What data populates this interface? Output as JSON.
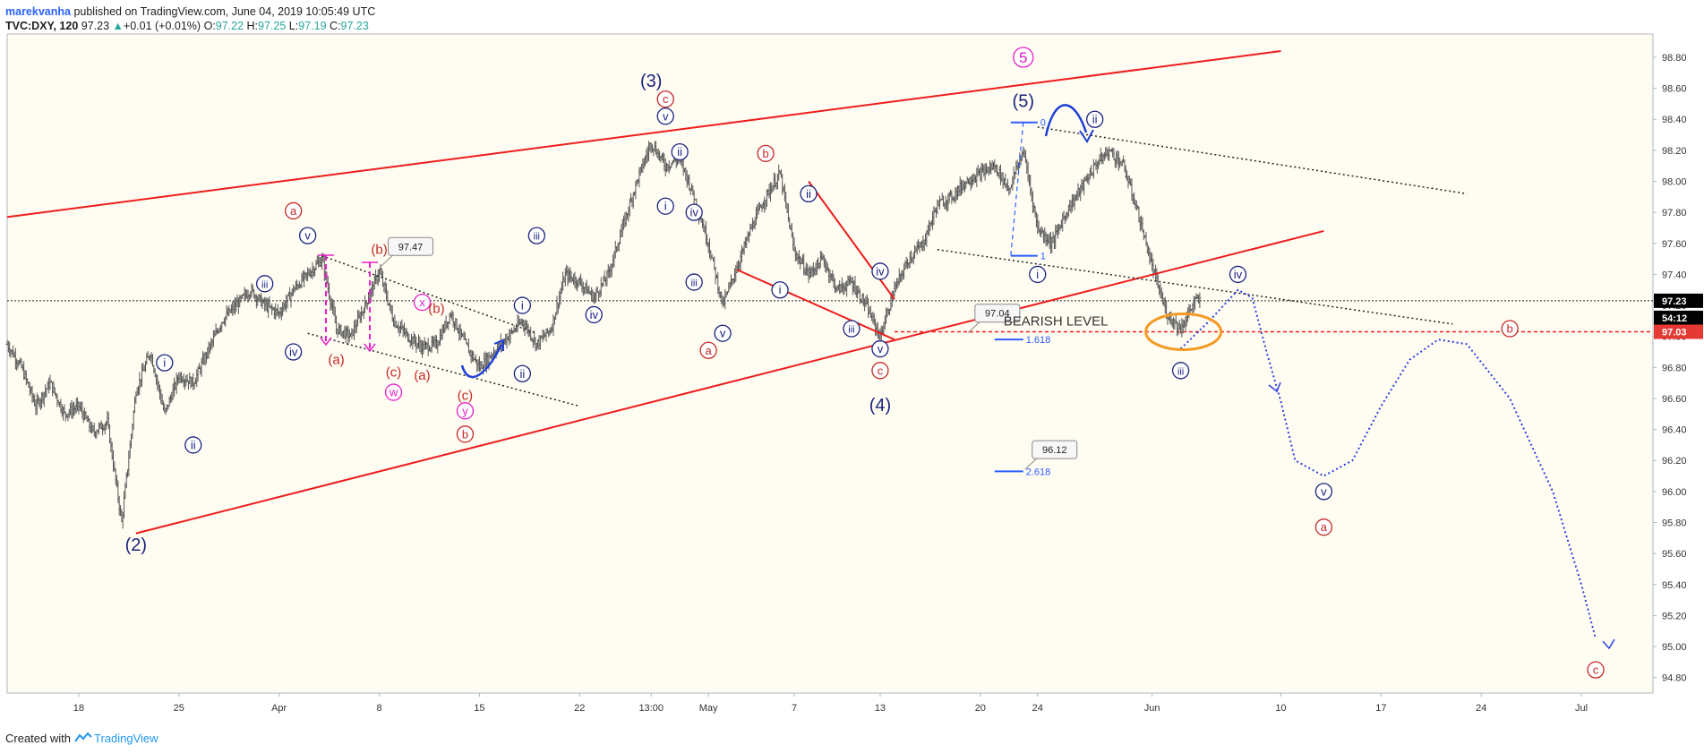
{
  "header": {
    "author": "marekvanha",
    "published_text": "published on TradingView.com, June 04, 2019 10:05:49 UTC",
    "symbol": "TVC:DXY, 120",
    "last": "97.23",
    "change": "+0.01 (+0.01%)",
    "open_label": "O:",
    "open": "97.22",
    "high_label": "H:",
    "high": "97.25",
    "low_label": "L:",
    "low": "97.19",
    "close_label": "C:",
    "close": "97.23"
  },
  "footer": {
    "created_with": "Created with",
    "brand": "TradingView"
  },
  "colors": {
    "red": "#ee1c1c",
    "navy": "#1a237e",
    "blue": "#1e3fd6",
    "magenta": "#e91ec8",
    "darkred": "#c62828",
    "orange": "#f59a23",
    "candle": "#555555"
  },
  "chart_data": {
    "type": "bar",
    "title": "",
    "xlabel": "",
    "ylabel": "",
    "ylim": [
      94.7,
      98.95
    ],
    "xlim": [
      "2019-03-13",
      "2019-07-06"
    ],
    "grid": false,
    "y_ticks": [
      "98.80",
      "98.60",
      "98.40",
      "98.20",
      "98.00",
      "97.80",
      "97.60",
      "97.40",
      "97.20",
      "97.00",
      "96.80",
      "96.60",
      "96.40",
      "96.20",
      "96.00",
      "95.80",
      "95.60",
      "95.40",
      "95.20",
      "95.00",
      "94.80"
    ],
    "x_ticks": [
      {
        "label": "18",
        "date": "2019-03-18"
      },
      {
        "label": "25",
        "date": "2019-03-25"
      },
      {
        "label": "Apr",
        "date": "2019-04-01"
      },
      {
        "label": "8",
        "date": "2019-04-08"
      },
      {
        "label": "15",
        "date": "2019-04-15"
      },
      {
        "label": "22",
        "date": "2019-04-22"
      },
      {
        "label": "13:00",
        "date": "2019-04-27"
      },
      {
        "label": "May",
        "date": "2019-05-01"
      },
      {
        "label": "7",
        "date": "2019-05-07"
      },
      {
        "label": "13",
        "date": "2019-05-13"
      },
      {
        "label": "20",
        "date": "2019-05-20"
      },
      {
        "label": "24",
        "date": "2019-05-24"
      },
      {
        "label": "Jun",
        "date": "2019-06-01"
      },
      {
        "label": "10",
        "date": "2019-06-10"
      },
      {
        "label": "17",
        "date": "2019-06-17"
      },
      {
        "label": "24",
        "date": "2019-06-24"
      },
      {
        "label": "Jul",
        "date": "2019-07-01"
      }
    ],
    "price_path": [
      [
        "2019-03-13",
        96.95
      ],
      [
        "2019-03-14",
        96.8
      ],
      [
        "2019-03-15",
        96.55
      ],
      [
        "2019-03-16",
        96.7
      ],
      [
        "2019-03-17",
        96.5
      ],
      [
        "2019-03-18",
        96.55
      ],
      [
        "2019-03-19",
        96.38
      ],
      [
        "2019-03-20",
        96.45
      ],
      [
        "2019-03-21",
        95.8
      ],
      [
        "2019-03-22",
        96.65
      ],
      [
        "2019-03-23",
        96.9
      ],
      [
        "2019-03-24",
        96.5
      ],
      [
        "2019-03-25",
        96.75
      ],
      [
        "2019-03-26",
        96.7
      ],
      [
        "2019-03-27",
        96.9
      ],
      [
        "2019-03-28",
        97.1
      ],
      [
        "2019-03-29",
        97.2
      ],
      [
        "2019-03-30",
        97.3
      ],
      [
        "2019-03-31",
        97.2
      ],
      [
        "2019-04-01",
        97.15
      ],
      [
        "2019-04-02",
        97.3
      ],
      [
        "2019-04-03",
        97.4
      ],
      [
        "2019-04-04",
        97.5
      ],
      [
        "2019-04-05",
        97.05
      ],
      [
        "2019-04-06",
        97.0
      ],
      [
        "2019-04-07",
        97.2
      ],
      [
        "2019-04-08",
        97.42
      ],
      [
        "2019-04-09",
        97.1
      ],
      [
        "2019-04-10",
        97.0
      ],
      [
        "2019-04-11",
        96.93
      ],
      [
        "2019-04-12",
        96.95
      ],
      [
        "2019-04-13",
        97.15
      ],
      [
        "2019-04-14",
        96.95
      ],
      [
        "2019-04-15",
        96.8
      ],
      [
        "2019-04-16",
        96.9
      ],
      [
        "2019-04-17",
        97.0
      ],
      [
        "2019-04-18",
        97.1
      ],
      [
        "2019-04-19",
        96.95
      ],
      [
        "2019-04-20",
        97.05
      ],
      [
        "2019-04-21",
        97.4
      ],
      [
        "2019-04-22",
        97.35
      ],
      [
        "2019-04-23",
        97.25
      ],
      [
        "2019-04-24",
        97.4
      ],
      [
        "2019-04-25",
        97.7
      ],
      [
        "2019-04-26",
        98.0
      ],
      [
        "2019-04-27",
        98.25
      ],
      [
        "2019-04-28",
        98.1
      ],
      [
        "2019-04-29",
        98.15
      ],
      [
        "2019-04-30",
        97.9
      ],
      [
        "2019-05-01",
        97.6
      ],
      [
        "2019-05-02",
        97.2
      ],
      [
        "2019-05-03",
        97.45
      ],
      [
        "2019-05-04",
        97.7
      ],
      [
        "2019-05-05",
        97.9
      ],
      [
        "2019-05-06",
        98.05
      ],
      [
        "2019-05-07",
        97.55
      ],
      [
        "2019-05-08",
        97.4
      ],
      [
        "2019-05-09",
        97.5
      ],
      [
        "2019-05-10",
        97.3
      ],
      [
        "2019-05-11",
        97.35
      ],
      [
        "2019-05-12",
        97.2
      ],
      [
        "2019-05-13",
        97.0
      ],
      [
        "2019-05-14",
        97.3
      ],
      [
        "2019-05-15",
        97.5
      ],
      [
        "2019-05-16",
        97.6
      ],
      [
        "2019-05-17",
        97.85
      ],
      [
        "2019-05-18",
        97.9
      ],
      [
        "2019-05-19",
        98.0
      ],
      [
        "2019-05-20",
        98.05
      ],
      [
        "2019-05-21",
        98.1
      ],
      [
        "2019-05-22",
        97.95
      ],
      [
        "2019-05-23",
        98.2
      ],
      [
        "2019-05-24",
        97.7
      ],
      [
        "2019-05-25",
        97.6
      ],
      [
        "2019-05-26",
        97.8
      ],
      [
        "2019-05-27",
        97.95
      ],
      [
        "2019-05-28",
        98.1
      ],
      [
        "2019-05-29",
        98.2
      ],
      [
        "2019-05-30",
        98.1
      ],
      [
        "2019-05-31",
        97.8
      ],
      [
        "2019-06-01",
        97.45
      ],
      [
        "2019-06-02",
        97.15
      ],
      [
        "2019-06-03",
        97.05
      ],
      [
        "2019-06-04",
        97.23
      ]
    ],
    "series": [],
    "lines": [
      {
        "from": [
          "2019-03-13",
          97.77
        ],
        "to": [
          "2019-06-10",
          98.84
        ],
        "color": "#ee1c1c"
      },
      {
        "from": [
          "2019-03-22",
          95.73
        ],
        "to": [
          "2019-06-13",
          97.68
        ],
        "color": "#ee1c1c"
      },
      {
        "from": [
          "2019-05-03",
          97.43
        ],
        "to": [
          "2019-05-14",
          96.98
        ],
        "color": "#ee1c1c"
      },
      {
        "from": [
          "2019-05-08",
          98.0
        ],
        "to": [
          "2019-05-14",
          97.24
        ],
        "color": "#ee1c1c"
      }
    ],
    "dotted_lines": [
      {
        "from": [
          "2019-04-04",
          97.52
        ],
        "to": [
          "2019-04-19",
          97.02
        ]
      },
      {
        "from": [
          "2019-04-03",
          97.02
        ],
        "to": [
          "2019-04-22",
          96.55
        ]
      },
      {
        "from": [
          "2019-05-24",
          98.35
        ],
        "to": [
          "2019-06-23",
          97.92
        ]
      },
      {
        "from": [
          "2019-05-17",
          97.56
        ],
        "to": [
          "2019-06-22",
          97.08
        ]
      }
    ],
    "horizontal_levels": [
      {
        "price": 97.23,
        "style": "dotted",
        "color": "#222222"
      },
      {
        "price": 97.03,
        "style": "dashed",
        "color": "#ee1c1c",
        "from": "2019-05-14"
      }
    ],
    "bearish_level": {
      "label": "BEARISH LEVEL",
      "date": "2019-05-21",
      "price": 97.1
    },
    "fib": [
      {
        "label": "0",
        "price": 98.38
      },
      {
        "label": "1",
        "price": 97.52
      },
      {
        "label": "1.618",
        "price": 96.98
      },
      {
        "label": "2.618",
        "price": 96.13
      }
    ],
    "callouts": [
      {
        "text": "97.47",
        "date": "2019-04-09",
        "price": 97.58
      },
      {
        "text": "97.04",
        "date": "2019-05-20",
        "price": 97.15
      },
      {
        "text": "96.12",
        "date": "2019-05-24",
        "price": 96.27
      }
    ],
    "price_labels": [
      {
        "text": "97.23",
        "price": 97.23,
        "bg": "#000000"
      },
      {
        "text": "54:12",
        "price": 97.12,
        "bg": "#000000"
      },
      {
        "text": "97.03",
        "price": 97.03,
        "bg": "#e53935"
      }
    ],
    "projection": [
      [
        "2019-06-03",
        96.92
      ],
      [
        "2019-06-05",
        97.1
      ],
      [
        "2019-06-07",
        97.3
      ],
      [
        "2019-06-08",
        97.25
      ],
      [
        "2019-06-09",
        96.9
      ],
      [
        "2019-06-10",
        96.58
      ],
      [
        "2019-06-11",
        96.2
      ],
      [
        "2019-06-13",
        96.1
      ],
      [
        "2019-06-15",
        96.2
      ],
      [
        "2019-06-17",
        96.55
      ],
      [
        "2019-06-19",
        96.85
      ],
      [
        "2019-06-21",
        96.98
      ],
      [
        "2019-06-23",
        96.95
      ],
      [
        "2019-06-26",
        96.6
      ],
      [
        "2019-06-29",
        96.0
      ],
      [
        "2019-07-01",
        95.4
      ],
      [
        "2019-07-02",
        95.05
      ]
    ],
    "wave_labels": [
      {
        "text": "(2)",
        "date": "2019-03-22",
        "price": 95.66,
        "style": "plain-blue"
      },
      {
        "text": "i",
        "date": "2019-03-24",
        "price": 96.83,
        "style": "circle-blue"
      },
      {
        "text": "ii",
        "date": "2019-03-26",
        "price": 96.3,
        "style": "circle-blue"
      },
      {
        "text": "iii",
        "date": "2019-03-31",
        "price": 97.34,
        "style": "circle-blue"
      },
      {
        "text": "iv",
        "date": "2019-04-02",
        "price": 96.9,
        "style": "circle-blue"
      },
      {
        "text": "v",
        "date": "2019-04-03",
        "price": 97.65,
        "style": "circle-blue"
      },
      {
        "text": "a",
        "date": "2019-04-02",
        "price": 97.81,
        "style": "circle-red"
      },
      {
        "text": "(a)",
        "date": "2019-04-05",
        "price": 96.85,
        "style": "plain-red"
      },
      {
        "text": "(b)",
        "date": "2019-04-08",
        "price": 97.56,
        "style": "plain-red"
      },
      {
        "text": "x",
        "date": "2019-04-11",
        "price": 97.22,
        "style": "circle-magenta"
      },
      {
        "text": "(b)",
        "date": "2019-04-12",
        "price": 97.18,
        "style": "plain-red"
      },
      {
        "text": "(c)",
        "date": "2019-04-09",
        "price": 96.77,
        "style": "plain-red"
      },
      {
        "text": "w",
        "date": "2019-04-09",
        "price": 96.64,
        "style": "circle-magenta"
      },
      {
        "text": "(a)",
        "date": "2019-04-11",
        "price": 96.75,
        "style": "plain-red"
      },
      {
        "text": "(c)",
        "date": "2019-04-14",
        "price": 96.62,
        "style": "plain-red"
      },
      {
        "text": "y",
        "date": "2019-04-14",
        "price": 96.52,
        "style": "circle-magenta"
      },
      {
        "text": "b",
        "date": "2019-04-14",
        "price": 96.37,
        "style": "circle-red"
      },
      {
        "text": "i",
        "date": "2019-04-18",
        "price": 97.2,
        "style": "circle-blue"
      },
      {
        "text": "ii",
        "date": "2019-04-18",
        "price": 96.76,
        "style": "circle-blue"
      },
      {
        "text": "iii",
        "date": "2019-04-19",
        "price": 97.65,
        "style": "circle-blue"
      },
      {
        "text": "iv",
        "date": "2019-04-23",
        "price": 97.14,
        "style": "circle-blue"
      },
      {
        "text": "(3)",
        "date": "2019-04-27",
        "price": 98.65,
        "style": "plain-blue"
      },
      {
        "text": "c",
        "date": "2019-04-28",
        "price": 98.53,
        "style": "circle-red"
      },
      {
        "text": "v",
        "date": "2019-04-28",
        "price": 98.42,
        "style": "circle-blue"
      },
      {
        "text": "ii",
        "date": "2019-04-29",
        "price": 98.19,
        "style": "circle-blue"
      },
      {
        "text": "i",
        "date": "2019-04-28",
        "price": 97.84,
        "style": "circle-blue"
      },
      {
        "text": "iv",
        "date": "2019-04-30",
        "price": 97.8,
        "style": "circle-blue"
      },
      {
        "text": "iii",
        "date": "2019-04-30",
        "price": 97.35,
        "style": "circle-blue"
      },
      {
        "text": "v",
        "date": "2019-05-02",
        "price": 97.02,
        "style": "circle-blue"
      },
      {
        "text": "a",
        "date": "2019-05-01",
        "price": 96.91,
        "style": "circle-red"
      },
      {
        "text": "b",
        "date": "2019-05-05",
        "price": 98.18,
        "style": "circle-red"
      },
      {
        "text": "ii",
        "date": "2019-05-08",
        "price": 97.92,
        "style": "circle-blue"
      },
      {
        "text": "i",
        "date": "2019-05-06",
        "price": 97.3,
        "style": "circle-blue"
      },
      {
        "text": "iii",
        "date": "2019-05-11",
        "price": 97.05,
        "style": "circle-blue"
      },
      {
        "text": "iv",
        "date": "2019-05-13",
        "price": 97.42,
        "style": "circle-blue"
      },
      {
        "text": "v",
        "date": "2019-05-13",
        "price": 96.92,
        "style": "circle-blue"
      },
      {
        "text": "c",
        "date": "2019-05-13",
        "price": 96.78,
        "style": "circle-red"
      },
      {
        "text": "(4)",
        "date": "2019-05-13",
        "price": 96.56,
        "style": "plain-blue"
      },
      {
        "text": "5",
        "date": "2019-05-23",
        "price": 98.8,
        "style": "circle-magenta"
      },
      {
        "text": "(5)",
        "date": "2019-05-23",
        "price": 98.52,
        "style": "plain-blue"
      },
      {
        "text": "ii",
        "date": "2019-05-28",
        "price": 98.4,
        "style": "circle-blue"
      },
      {
        "text": "i",
        "date": "2019-05-24",
        "price": 97.4,
        "style": "circle-blue"
      },
      {
        "text": "iii",
        "date": "2019-06-03",
        "price": 96.78,
        "style": "circle-blue"
      },
      {
        "text": "iv",
        "date": "2019-06-07",
        "price": 97.4,
        "style": "circle-blue"
      },
      {
        "text": "v",
        "date": "2019-06-13",
        "price": 96.0,
        "style": "circle-blue"
      },
      {
        "text": "a",
        "date": "2019-06-13",
        "price": 95.77,
        "style": "circle-red"
      },
      {
        "text": "b",
        "date": "2019-06-26",
        "price": 97.05,
        "style": "circle-red"
      },
      {
        "text": "c",
        "date": "2019-07-02",
        "price": 94.85,
        "style": "circle-red"
      }
    ]
  }
}
